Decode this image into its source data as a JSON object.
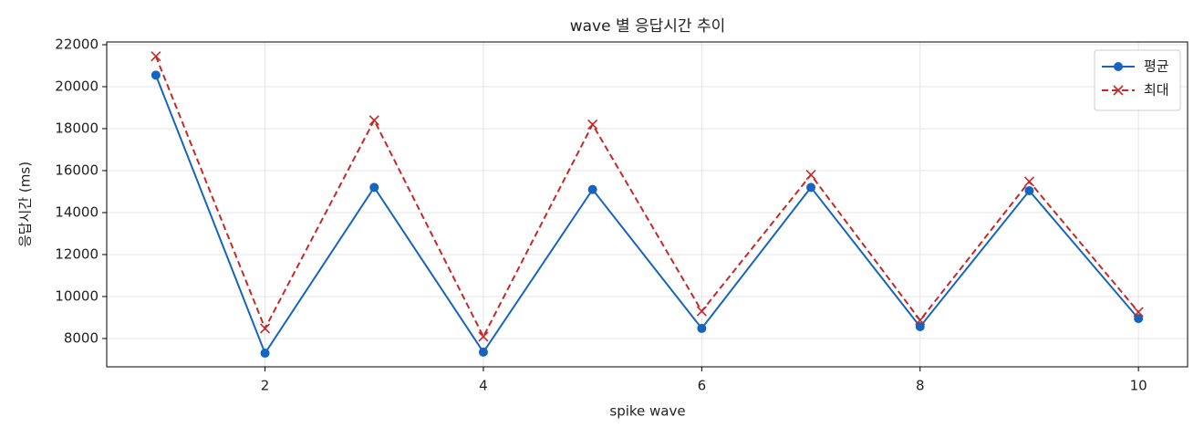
{
  "chart_data": {
    "type": "line",
    "title": "wave 별 응답시간 추이",
    "xlabel": "spike wave",
    "ylabel": "응답시간 (ms)",
    "x": [
      1,
      2,
      3,
      4,
      5,
      6,
      7,
      8,
      9,
      10
    ],
    "series": [
      {
        "name": "평균",
        "color": "#1565c0",
        "marker": "circle",
        "linestyle": "solid",
        "values": [
          20550,
          7300,
          15200,
          7350,
          15100,
          8480,
          15200,
          8565,
          15040,
          8950
        ]
      },
      {
        "name": "최대",
        "color": "#c62828",
        "marker": "x",
        "linestyle": "dashed",
        "values": [
          21450,
          8480,
          18400,
          8090,
          18200,
          9300,
          15800,
          8870,
          15480,
          9260
        ]
      }
    ],
    "xlim": [
      0.55,
      10.45
    ],
    "ylim": [
      6650,
      22130
    ],
    "xticks": [
      2,
      4,
      6,
      8,
      10
    ],
    "yticks": [
      8000,
      10000,
      12000,
      14000,
      16000,
      18000,
      20000,
      22000
    ],
    "grid": true,
    "legend": "upper right"
  }
}
